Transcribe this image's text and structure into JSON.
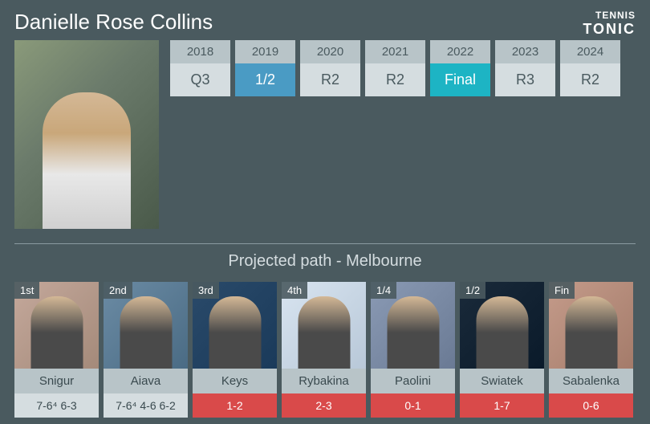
{
  "player_name": "Danielle Rose Collins",
  "logo": {
    "top": "TENNIS",
    "bottom": "TONIC"
  },
  "subtitle": "Projected path - Melbourne",
  "colors": {
    "background": "#4a5a5f",
    "box_header": "#b8c4c8",
    "box_body": "#d5dde0",
    "highlight_blue": "#4a9bc4",
    "highlight_cyan": "#1db4c4",
    "red": "#d94a4a",
    "text_light": "#ffffff",
    "text_dark": "#3a4a4f"
  },
  "years": [
    {
      "year": "2018",
      "result": "Q3",
      "style": ""
    },
    {
      "year": "2019",
      "result": "1/2",
      "style": "highlight-blue"
    },
    {
      "year": "2020",
      "result": "R2",
      "style": ""
    },
    {
      "year": "2021",
      "result": "R2",
      "style": ""
    },
    {
      "year": "2022",
      "result": "Final",
      "style": "highlight-cyan"
    },
    {
      "year": "2023",
      "result": "R3",
      "style": ""
    },
    {
      "year": "2024",
      "result": "R2",
      "style": ""
    }
  ],
  "path": [
    {
      "round": "1st",
      "name": "Snigur",
      "h2h": "7-6⁴ 6-3",
      "h2h_style": "",
      "bg": "bg1"
    },
    {
      "round": "2nd",
      "name": "Aiava",
      "h2h": "7-6⁴ 4-6 6-2",
      "h2h_style": "",
      "bg": "bg2"
    },
    {
      "round": "3rd",
      "name": "Keys",
      "h2h": "1-2",
      "h2h_style": "red",
      "bg": "bg3"
    },
    {
      "round": "4th",
      "name": "Rybakina",
      "h2h": "2-3",
      "h2h_style": "red",
      "bg": "bg4"
    },
    {
      "round": "1/4",
      "name": "Paolini",
      "h2h": "0-1",
      "h2h_style": "red",
      "bg": "bg5"
    },
    {
      "round": "1/2",
      "name": "Swiatek",
      "h2h": "1-7",
      "h2h_style": "red",
      "bg": "bg6"
    },
    {
      "round": "Fin",
      "name": "Sabalenka",
      "h2h": "0-6",
      "h2h_style": "red",
      "bg": "bg7"
    }
  ]
}
